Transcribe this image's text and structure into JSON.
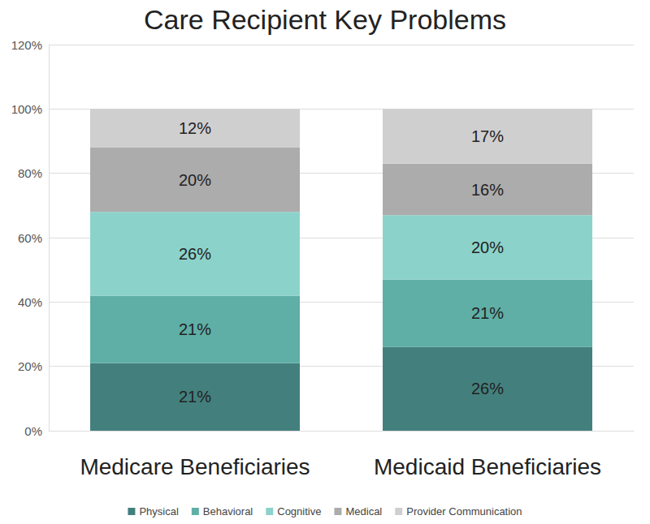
{
  "chart_data": {
    "type": "bar",
    "title": "Care Recipient Key Problems",
    "categories": [
      "Medicare Beneficiaries",
      "Medicaid Beneficiaries"
    ],
    "stacked": true,
    "data_labels": true,
    "grid": true,
    "legend": "bottom",
    "ylim": [
      0,
      120
    ],
    "yticks": [
      {
        "value": 0,
        "label": "0%"
      },
      {
        "value": 20,
        "label": "20%"
      },
      {
        "value": 40,
        "label": "40%"
      },
      {
        "value": 60,
        "label": "60%"
      },
      {
        "value": 80,
        "label": "80%"
      },
      {
        "value": 100,
        "label": "100%"
      },
      {
        "value": 120,
        "label": "120%"
      }
    ],
    "series": [
      {
        "name": "Physical",
        "color": "#43807d",
        "values": [
          21,
          26
        ],
        "value_labels": [
          "21%",
          "26%"
        ]
      },
      {
        "name": "Behavioral",
        "color": "#5fafa6",
        "values": [
          21,
          21
        ],
        "value_labels": [
          "21%",
          "21%"
        ]
      },
      {
        "name": "Cognitive",
        "color": "#8bd3ca",
        "values": [
          26,
          20
        ],
        "value_labels": [
          "26%",
          "20%"
        ]
      },
      {
        "name": "Medical",
        "color": "#acacac",
        "values": [
          20,
          16
        ],
        "value_labels": [
          "20%",
          "16%"
        ]
      },
      {
        "name": "Provider Communication",
        "color": "#d0cfd0",
        "values": [
          12,
          17
        ],
        "value_labels": [
          "12%",
          "17%"
        ]
      }
    ]
  }
}
